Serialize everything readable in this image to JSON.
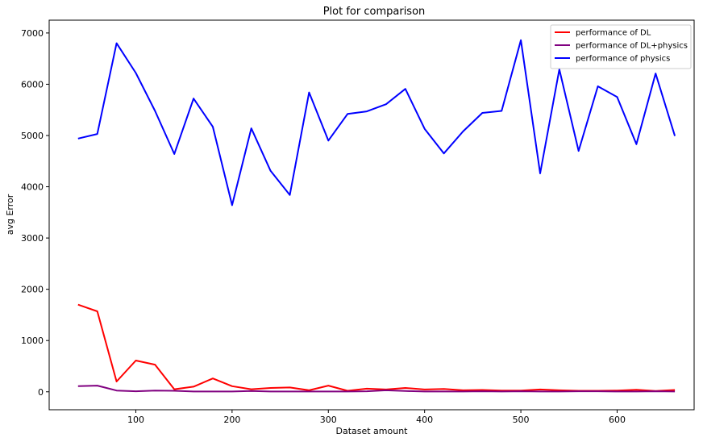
{
  "chart_data": {
    "type": "line",
    "title": "Plot for comparison",
    "xlabel": "Dataset amount",
    "ylabel": "avg Error",
    "xlim": [
      10,
      680
    ],
    "ylim": [
      -350,
      7250
    ],
    "xticks": [
      100,
      200,
      300,
      400,
      500,
      600
    ],
    "yticks": [
      0,
      1000,
      2000,
      3000,
      4000,
      5000,
      6000,
      7000
    ],
    "grid": false,
    "legend_position": "top-right",
    "x": [
      40,
      60,
      80,
      100,
      120,
      140,
      160,
      180,
      200,
      220,
      240,
      260,
      280,
      300,
      320,
      340,
      360,
      380,
      400,
      420,
      440,
      460,
      480,
      500,
      520,
      540,
      560,
      580,
      600,
      620,
      640,
      660
    ],
    "series": [
      {
        "name": "performance of DL",
        "color": "#ff0000",
        "values": [
          1700,
          1570,
          200,
          610,
          530,
          50,
          100,
          260,
          110,
          50,
          75,
          85,
          30,
          120,
          20,
          60,
          45,
          75,
          45,
          55,
          30,
          35,
          25,
          25,
          45,
          30,
          20,
          20,
          25,
          40,
          15,
          35
        ]
      },
      {
        "name": "performance of DL+physics",
        "color": "#800080",
        "values": [
          110,
          120,
          25,
          10,
          25,
          20,
          5,
          5,
          5,
          15,
          5,
          5,
          5,
          5,
          5,
          10,
          30,
          15,
          5,
          5,
          5,
          10,
          5,
          10,
          5,
          5,
          10,
          10,
          5,
          5,
          10,
          5
        ]
      },
      {
        "name": "performance of physics",
        "color": "#0000ff",
        "values": [
          4940,
          5030,
          6800,
          6220,
          5480,
          4640,
          5720,
          5170,
          3640,
          5140,
          4310,
          3840,
          5840,
          4900,
          5420,
          5470,
          5610,
          5910,
          5130,
          4650,
          5080,
          5440,
          5480,
          6860,
          4260,
          6290,
          4700,
          5960,
          5750,
          4830,
          6210,
          4990
        ]
      }
    ]
  }
}
